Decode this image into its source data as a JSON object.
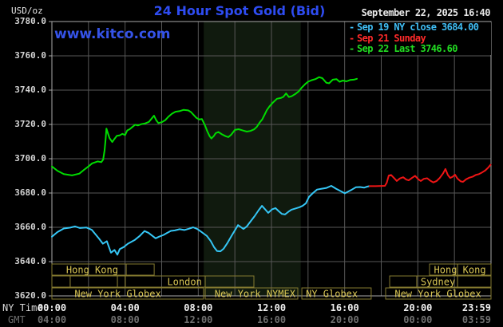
{
  "header": {
    "unit_label": "USD/oz",
    "title": "24 Hour Spot Gold (Bid)",
    "date_text": "September 22, 2025 16:40",
    "watermark": "www.kitco.com"
  },
  "legend": {
    "items": [
      {
        "dash": "-",
        "label": "Sep 19 NY close 3684.00",
        "color": "#3fbdf4"
      },
      {
        "dash": "-",
        "label": "Sep 21 Sunday",
        "color": "#ff2a2a"
      },
      {
        "dash": "-",
        "label": "Sep 22 Last 3746.60",
        "color": "#22dd22"
      }
    ]
  },
  "axes": {
    "y_tick_labels": [
      "3780.0",
      "3760.0",
      "3740.0",
      "3720.0",
      "3700.0",
      "3680.0",
      "3660.0",
      "3640.0",
      "3620.0"
    ],
    "y_tick_values": [
      3780,
      3760,
      3740,
      3720,
      3700,
      3680,
      3660,
      3640,
      3620
    ],
    "x_row_ny_label": "NY Time",
    "x_row_gmt_label": "GMT",
    "ny_ticks": [
      "00:00",
      "04:00",
      "08:00",
      "12:00",
      "16:00",
      "20:00",
      "23:59"
    ],
    "gmt_ticks": [
      "04:00",
      "08:00",
      "12:00",
      "16:00",
      "20:00",
      "00:00",
      "03:59"
    ],
    "tick_hours": [
      0,
      4,
      8,
      12,
      16,
      20,
      24
    ]
  },
  "sessions": {
    "rows": [
      {
        "boxes": [
          {
            "from": 0,
            "to": 4.06
          },
          {
            "from": 4.06,
            "to": 5.59
          },
          {
            "from": 20.64,
            "to": 22.17
          },
          {
            "from": 22.17,
            "to": 24
          }
        ],
        "labels": [
          {
            "text": "Hong Kong",
            "at": 2.2
          },
          {
            "text": "Hong Kong",
            "at": 22.3
          }
        ]
      },
      {
        "boxes": [
          {
            "from": 0,
            "to": 1.0
          },
          {
            "from": 1.0,
            "to": 3.58
          },
          {
            "from": 3.58,
            "to": 4.01
          },
          {
            "from": 4.01,
            "to": 8.38
          },
          {
            "from": 8.38,
            "to": 11.04
          },
          {
            "from": 18.46,
            "to": 19.94
          },
          {
            "from": 19.94,
            "to": 22.17
          },
          {
            "from": 22.17,
            "to": 24
          }
        ],
        "labels": [
          {
            "text": "London",
            "at": 7.25
          },
          {
            "text": "Sydney",
            "at": 21.1
          }
        ]
      },
      {
        "boxes": [
          {
            "from": 0,
            "to": 8.29
          },
          {
            "from": 8.38,
            "to": 13.44
          },
          {
            "from": 13.66,
            "to": 17.45
          },
          {
            "from": 18.24,
            "to": 24
          }
        ],
        "labels": [
          {
            "text": "New York Globex",
            "at": 3.6
          },
          {
            "text": "New York NYMEX",
            "at": 11.1
          },
          {
            "text": "NY Globex",
            "at": 15.3
          },
          {
            "text": "New York Globex",
            "at": 21.1
          }
        ]
      }
    ]
  },
  "chart_data": {
    "type": "line",
    "title": "24 Hour Spot Gold (Bid)",
    "x_unit": "hours_ny_time",
    "xlim": [
      0,
      24
    ],
    "ylim": [
      3620,
      3780
    ],
    "y_gridline_step": 20,
    "x_gridline_step_hours": 2,
    "grid": true,
    "shaded_band_hours": {
      "from": 8.3,
      "to": 13.6
    },
    "series": [
      {
        "name": "Sep 19 NY close 3684.00",
        "color": "#35c6f5",
        "points": [
          [
            0,
            3654.5
          ],
          [
            0.3,
            3657.2
          ],
          [
            0.65,
            3659.3
          ],
          [
            1,
            3659.8
          ],
          [
            1.27,
            3660.5
          ],
          [
            1.53,
            3659.6
          ],
          [
            1.88,
            3659.9
          ],
          [
            2.18,
            3658.5
          ],
          [
            2.57,
            3653.5
          ],
          [
            2.79,
            3650.4
          ],
          [
            3,
            3651.9
          ],
          [
            3.23,
            3645.2
          ],
          [
            3.42,
            3646.8
          ],
          [
            3.58,
            3644
          ],
          [
            3.71,
            3647.3
          ],
          [
            3.93,
            3648.5
          ],
          [
            4.15,
            3650.4
          ],
          [
            4.54,
            3652.7
          ],
          [
            4.8,
            3655
          ],
          [
            5.06,
            3657.8
          ],
          [
            5.28,
            3656.8
          ],
          [
            5.5,
            3655
          ],
          [
            5.67,
            3653.6
          ],
          [
            5.85,
            3654.5
          ],
          [
            6.11,
            3655.6
          ],
          [
            6.28,
            3656.6
          ],
          [
            6.5,
            3657.9
          ],
          [
            6.72,
            3658.2
          ],
          [
            6.98,
            3658.9
          ],
          [
            7.24,
            3658.4
          ],
          [
            7.5,
            3659.2
          ],
          [
            7.72,
            3660
          ],
          [
            7.94,
            3659
          ],
          [
            8.16,
            3657.4
          ],
          [
            8.47,
            3655
          ],
          [
            8.68,
            3652
          ],
          [
            8.86,
            3648.5
          ],
          [
            9.03,
            3646.2
          ],
          [
            9.21,
            3646
          ],
          [
            9.38,
            3647.5
          ],
          [
            9.6,
            3651
          ],
          [
            9.82,
            3655
          ],
          [
            10.03,
            3658.8
          ],
          [
            10.17,
            3661.3
          ],
          [
            10.34,
            3660
          ],
          [
            10.47,
            3659
          ],
          [
            10.65,
            3660.5
          ],
          [
            10.86,
            3663.5
          ],
          [
            11.08,
            3666.5
          ],
          [
            11.3,
            3670
          ],
          [
            11.48,
            3672.5
          ],
          [
            11.65,
            3670.5
          ],
          [
            11.82,
            3668.4
          ],
          [
            12.04,
            3670.5
          ],
          [
            12.22,
            3671.2
          ],
          [
            12.39,
            3669.5
          ],
          [
            12.57,
            3667.8
          ],
          [
            12.74,
            3667.5
          ],
          [
            12.92,
            3669
          ],
          [
            13.09,
            3670.3
          ],
          [
            13.31,
            3671
          ],
          [
            13.53,
            3671.7
          ],
          [
            13.7,
            3672.5
          ],
          [
            13.88,
            3674
          ],
          [
            14.05,
            3677.7
          ],
          [
            14.27,
            3680
          ],
          [
            14.49,
            3682
          ],
          [
            14.75,
            3682.5
          ],
          [
            15.01,
            3683
          ],
          [
            15.27,
            3684.2
          ],
          [
            15.53,
            3682.5
          ],
          [
            15.79,
            3681
          ],
          [
            16.01,
            3679.8
          ],
          [
            16.23,
            3681
          ],
          [
            16.4,
            3682
          ],
          [
            16.62,
            3683.4
          ],
          [
            16.84,
            3683.5
          ],
          [
            17.06,
            3683.1
          ],
          [
            17.23,
            3683.7
          ],
          [
            17.36,
            3684
          ]
        ]
      },
      {
        "name": "Sep 21 Sunday",
        "color": "#f01515",
        "points": [
          [
            17.36,
            3684
          ],
          [
            17.7,
            3684
          ],
          [
            18.2,
            3684.2
          ],
          [
            18.3,
            3686
          ],
          [
            18.41,
            3690.2
          ],
          [
            18.54,
            3690.5
          ],
          [
            18.72,
            3688.5
          ],
          [
            18.85,
            3687
          ],
          [
            19.02,
            3688.5
          ],
          [
            19.2,
            3689.2
          ],
          [
            19.37,
            3687.8
          ],
          [
            19.5,
            3687.4
          ],
          [
            19.68,
            3688.8
          ],
          [
            19.85,
            3690
          ],
          [
            20.03,
            3688
          ],
          [
            20.16,
            3687
          ],
          [
            20.33,
            3688.3
          ],
          [
            20.51,
            3688.6
          ],
          [
            20.68,
            3687.2
          ],
          [
            20.85,
            3686.2
          ],
          [
            21.03,
            3687
          ],
          [
            21.2,
            3688.8
          ],
          [
            21.38,
            3691.5
          ],
          [
            21.51,
            3694
          ],
          [
            21.64,
            3690.5
          ],
          [
            21.77,
            3688.8
          ],
          [
            21.9,
            3689.5
          ],
          [
            22.03,
            3690.7
          ],
          [
            22.16,
            3688.5
          ],
          [
            22.34,
            3686.8
          ],
          [
            22.47,
            3686.5
          ],
          [
            22.64,
            3688
          ],
          [
            22.82,
            3689
          ],
          [
            22.99,
            3689.5
          ],
          [
            23.16,
            3690.5
          ],
          [
            23.34,
            3691
          ],
          [
            23.51,
            3692
          ],
          [
            23.69,
            3693.2
          ],
          [
            23.86,
            3695
          ],
          [
            23.98,
            3696.5
          ]
        ]
      },
      {
        "name": "Sep 22 Last 3746.60",
        "color": "#00dc00",
        "points": [
          [
            0,
            3695.5
          ],
          [
            0.3,
            3693
          ],
          [
            0.65,
            3691
          ],
          [
            1.1,
            3690.3
          ],
          [
            1.5,
            3691.3
          ],
          [
            1.75,
            3693.5
          ],
          [
            2,
            3695.5
          ],
          [
            2.2,
            3697.3
          ],
          [
            2.5,
            3698.4
          ],
          [
            2.7,
            3698
          ],
          [
            2.8,
            3699.5
          ],
          [
            2.88,
            3705
          ],
          [
            2.94,
            3712
          ],
          [
            2.98,
            3717.6
          ],
          [
            3.05,
            3715.2
          ],
          [
            3.15,
            3712
          ],
          [
            3.3,
            3709.7
          ],
          [
            3.42,
            3711.6
          ],
          [
            3.55,
            3713.4
          ],
          [
            3.7,
            3713.6
          ],
          [
            3.85,
            3714.5
          ],
          [
            4,
            3713.8
          ],
          [
            4.12,
            3716.5
          ],
          [
            4.25,
            3717.2
          ],
          [
            4.4,
            3718.5
          ],
          [
            4.55,
            3719.8
          ],
          [
            4.7,
            3719.4
          ],
          [
            4.9,
            3720.2
          ],
          [
            5.1,
            3720.6
          ],
          [
            5.3,
            3721.5
          ],
          [
            5.45,
            3723.4
          ],
          [
            5.58,
            3725.1
          ],
          [
            5.7,
            3722.5
          ],
          [
            5.82,
            3720.8
          ],
          [
            6,
            3721.3
          ],
          [
            6.2,
            3722.5
          ],
          [
            6.35,
            3724.3
          ],
          [
            6.55,
            3726.2
          ],
          [
            6.75,
            3727.4
          ],
          [
            7,
            3727.8
          ],
          [
            7.2,
            3728.5
          ],
          [
            7.45,
            3728.2
          ],
          [
            7.6,
            3727.2
          ],
          [
            7.75,
            3725.5
          ],
          [
            7.9,
            3723.8
          ],
          [
            8.05,
            3722.9
          ],
          [
            8.2,
            3723.1
          ],
          [
            8.35,
            3719.8
          ],
          [
            8.5,
            3715.8
          ],
          [
            8.62,
            3713.2
          ],
          [
            8.72,
            3711.8
          ],
          [
            8.85,
            3713.2
          ],
          [
            8.95,
            3714.9
          ],
          [
            9.1,
            3715.6
          ],
          [
            9.3,
            3714.2
          ],
          [
            9.5,
            3713.1
          ],
          [
            9.65,
            3712.6
          ],
          [
            9.8,
            3714
          ],
          [
            10,
            3716.8
          ],
          [
            10.2,
            3717.2
          ],
          [
            10.45,
            3716.4
          ],
          [
            10.65,
            3715.8
          ],
          [
            10.85,
            3716.2
          ],
          [
            11.05,
            3717.1
          ],
          [
            11.2,
            3718.6
          ],
          [
            11.35,
            3721
          ],
          [
            11.5,
            3723
          ],
          [
            11.62,
            3725.6
          ],
          [
            11.75,
            3728.4
          ],
          [
            11.9,
            3730.6
          ],
          [
            12.1,
            3733
          ],
          [
            12.3,
            3735
          ],
          [
            12.5,
            3735.4
          ],
          [
            12.65,
            3736.1
          ],
          [
            12.8,
            3738.1
          ],
          [
            12.95,
            3736
          ],
          [
            13.1,
            3736.4
          ],
          [
            13.3,
            3737.7
          ],
          [
            13.5,
            3739.4
          ],
          [
            13.65,
            3741.4
          ],
          [
            13.85,
            3743.6
          ],
          [
            14,
            3744.9
          ],
          [
            14.2,
            3745.8
          ],
          [
            14.4,
            3746.4
          ],
          [
            14.6,
            3747.6
          ],
          [
            14.78,
            3747
          ],
          [
            15,
            3744.3
          ],
          [
            15.15,
            3744
          ],
          [
            15.35,
            3746.1
          ],
          [
            15.55,
            3746.4
          ],
          [
            15.72,
            3744.9
          ],
          [
            15.9,
            3745.6
          ],
          [
            16.1,
            3745.1
          ],
          [
            16.3,
            3745.9
          ],
          [
            16.5,
            3746.1
          ],
          [
            16.67,
            3746.6
          ]
        ]
      }
    ]
  },
  "colors": {
    "background": "#000000",
    "plot_border": "#a8a8a8",
    "gridline": "#575757",
    "shaded_band": "#101a0e",
    "session_box_border": "#857a30",
    "session_label": "#d9c654",
    "title_blue": "#2e4cf2",
    "watermark_blue": "#3553e8"
  }
}
